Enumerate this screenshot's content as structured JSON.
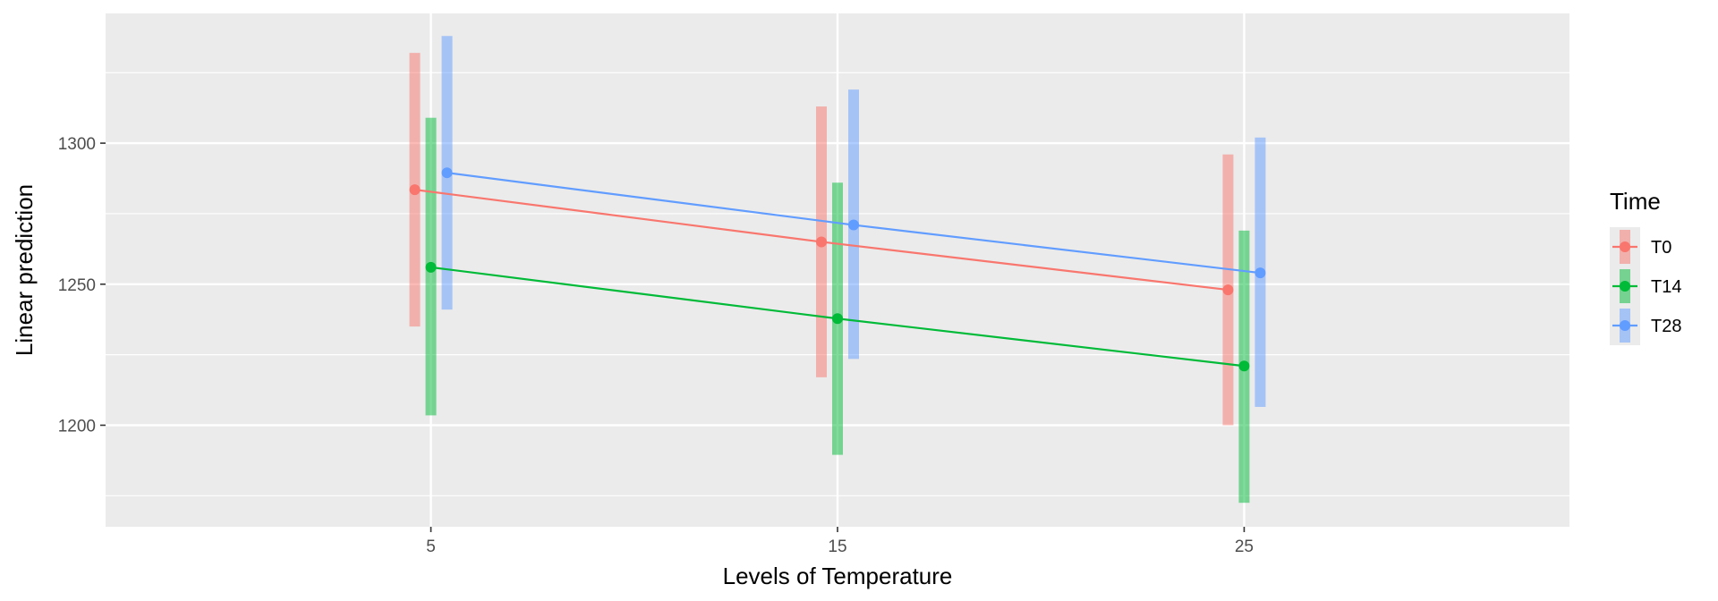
{
  "chart_data": {
    "type": "line",
    "xlabel": "Levels of Temperature",
    "ylabel": "Linear prediction",
    "categories": [
      "5",
      "15",
      "25"
    ],
    "yticks": [
      1200,
      1250,
      1300
    ],
    "ylim": [
      1164,
      1346
    ],
    "grid": true,
    "legend": {
      "title": "Time",
      "placement": "right"
    },
    "series": [
      {
        "name": "T0",
        "color": "#F8766D",
        "values": [
          1283.5,
          1265,
          1248
        ],
        "lower": [
          1235,
          1217,
          1200
        ],
        "upper": [
          1332,
          1313,
          1296
        ]
      },
      {
        "name": "T14",
        "color": "#00BA38",
        "values": [
          1256,
          1237.8,
          1221
        ],
        "lower": [
          1203.5,
          1189.5,
          1172.5
        ],
        "upper": [
          1309,
          1286,
          1269
        ]
      },
      {
        "name": "T28",
        "color": "#619CFF",
        "values": [
          1289.5,
          1271,
          1254
        ],
        "lower": [
          1241,
          1223.5,
          1206.5
        ],
        "upper": [
          1338,
          1319,
          1302
        ]
      }
    ]
  }
}
